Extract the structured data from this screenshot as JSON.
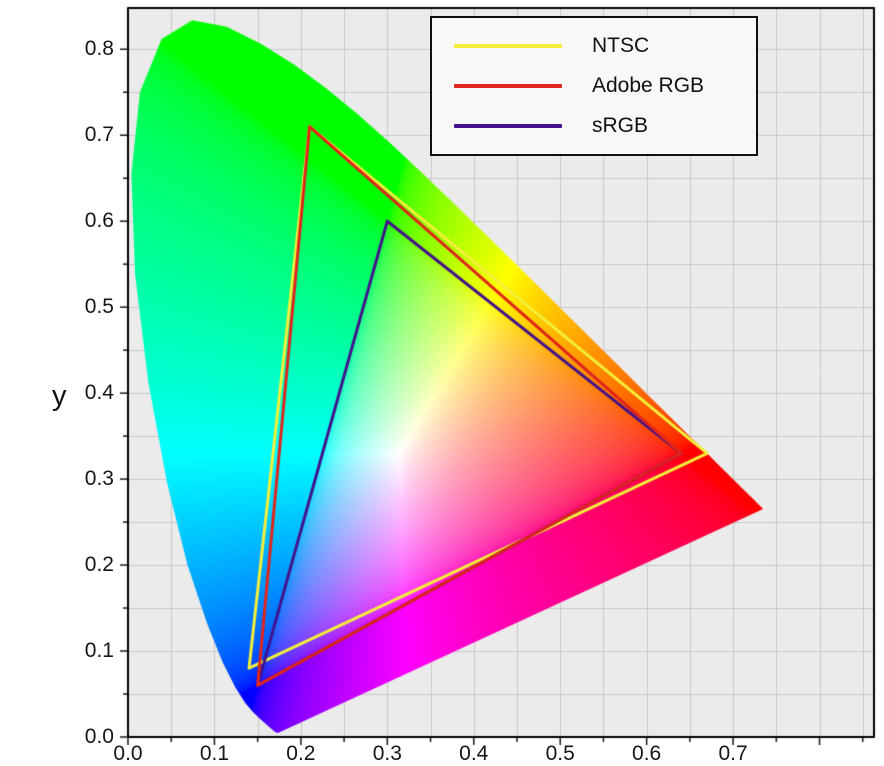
{
  "chart_data": {
    "type": "line",
    "subtype": "cie-1931-chromaticity-diagram",
    "title": "",
    "xlabel": "",
    "ylabel": "y",
    "xlim": [
      0,
      0.863
    ],
    "ylim": [
      0,
      0.848
    ],
    "grid": true,
    "grid_step": 0.05,
    "x_ticks": [
      0,
      0.1,
      0.2,
      0.3,
      0.4,
      0.5,
      0.6,
      0.7
    ],
    "x_tick_labels": [
      "0.0",
      "0.1",
      "0.2",
      "0.3",
      "0.4",
      "0.5",
      "0.6",
      "0.7"
    ],
    "y_ticks": [
      0,
      0.1,
      0.2,
      0.3,
      0.4,
      0.5,
      0.6,
      0.7,
      0.8
    ],
    "y_tick_labels": [
      "0.0",
      "0.1",
      "0.2",
      "0.3",
      "0.4",
      "0.5",
      "0.6",
      "0.7",
      "0.8"
    ],
    "legend": {
      "position": "top-right",
      "entries": [
        {
          "label": "NTSC",
          "color": "#f3ef39"
        },
        {
          "label": "Adobe RGB",
          "color": "#e0251c"
        },
        {
          "label": "sRGB",
          "color": "#44128c"
        }
      ]
    },
    "series": [
      {
        "name": "NTSC",
        "kind": "gamut-triangle",
        "color": "#f3ef39",
        "points": [
          [
            0.67,
            0.33
          ],
          [
            0.21,
            0.71
          ],
          [
            0.14,
            0.08
          ]
        ]
      },
      {
        "name": "Adobe RGB",
        "kind": "gamut-triangle",
        "color": "#e0251c",
        "points": [
          [
            0.64,
            0.33
          ],
          [
            0.21,
            0.71
          ],
          [
            0.15,
            0.06
          ]
        ]
      },
      {
        "name": "sRGB",
        "kind": "gamut-triangle",
        "color": "#44128c",
        "points": [
          [
            0.64,
            0.33
          ],
          [
            0.3,
            0.6
          ],
          [
            0.15,
            0.06
          ]
        ]
      }
    ],
    "spectral_locus": [
      [
        0.1741,
        0.005
      ],
      [
        0.174,
        0.005
      ],
      [
        0.1738,
        0.0049
      ],
      [
        0.1736,
        0.0049
      ],
      [
        0.1733,
        0.0048
      ],
      [
        0.173,
        0.0048
      ],
      [
        0.1726,
        0.0048
      ],
      [
        0.1721,
        0.0048
      ],
      [
        0.1714,
        0.0051
      ],
      [
        0.1703,
        0.0058
      ],
      [
        0.1689,
        0.0069
      ],
      [
        0.1669,
        0.0086
      ],
      [
        0.1644,
        0.0109
      ],
      [
        0.1611,
        0.0138
      ],
      [
        0.1566,
        0.0177
      ],
      [
        0.151,
        0.0227
      ],
      [
        0.144,
        0.0297
      ],
      [
        0.1355,
        0.0399
      ],
      [
        0.1241,
        0.0578
      ],
      [
        0.1096,
        0.0868
      ],
      [
        0.0913,
        0.1327
      ],
      [
        0.0687,
        0.2007
      ],
      [
        0.0454,
        0.295
      ],
      [
        0.0235,
        0.4127
      ],
      [
        0.0082,
        0.5384
      ],
      [
        0.0039,
        0.6548
      ],
      [
        0.0139,
        0.7502
      ],
      [
        0.0389,
        0.812
      ],
      [
        0.0743,
        0.8338
      ],
      [
        0.1142,
        0.8262
      ],
      [
        0.1547,
        0.8059
      ],
      [
        0.1929,
        0.7816
      ],
      [
        0.2296,
        0.7543
      ],
      [
        0.2658,
        0.7243
      ],
      [
        0.3016,
        0.6923
      ],
      [
        0.3373,
        0.6589
      ],
      [
        0.3731,
        0.6245
      ],
      [
        0.4087,
        0.5896
      ],
      [
        0.4441,
        0.5547
      ],
      [
        0.4788,
        0.5202
      ],
      [
        0.5125,
        0.4866
      ],
      [
        0.5448,
        0.4544
      ],
      [
        0.5752,
        0.4242
      ],
      [
        0.6029,
        0.3965
      ],
      [
        0.627,
        0.3725
      ],
      [
        0.6482,
        0.3514
      ],
      [
        0.6658,
        0.334
      ],
      [
        0.6801,
        0.3197
      ],
      [
        0.6915,
        0.3083
      ],
      [
        0.7006,
        0.2993
      ],
      [
        0.7079,
        0.292
      ],
      [
        0.714,
        0.2859
      ],
      [
        0.719,
        0.2809
      ],
      [
        0.723,
        0.277
      ],
      [
        0.726,
        0.274
      ],
      [
        0.7283,
        0.2717
      ],
      [
        0.73,
        0.27
      ],
      [
        0.7311,
        0.2689
      ],
      [
        0.732,
        0.268
      ],
      [
        0.7327,
        0.2673
      ],
      [
        0.7334,
        0.2666
      ],
      [
        0.734,
        0.266
      ],
      [
        0.7344,
        0.2656
      ],
      [
        0.7346,
        0.2654
      ],
      [
        0.7347,
        0.2653
      ]
    ],
    "plot_bg": "#ebebeb",
    "grid_color": "#c9c9c9",
    "border_color": "#000000",
    "tick_color": "#161616",
    "legend_bg": "#f8f8f8"
  }
}
